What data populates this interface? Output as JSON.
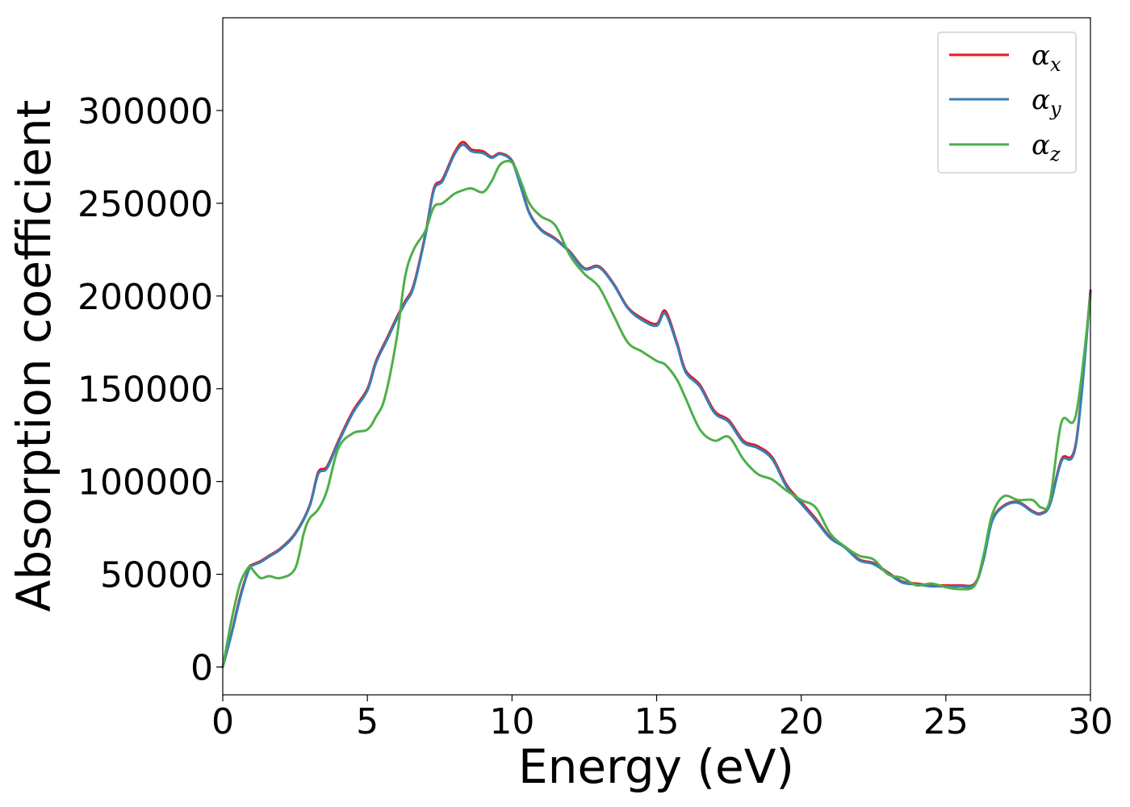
{
  "chart_data": {
    "type": "line",
    "title": "",
    "xlabel": "Energy (eV)",
    "ylabel": "Absorption coefficient",
    "xlim": [
      0,
      30
    ],
    "ylim": [
      -15000,
      350000
    ],
    "xticks": [
      0,
      5,
      10,
      15,
      20,
      25,
      30
    ],
    "yticks": [
      0,
      50000,
      100000,
      150000,
      200000,
      250000,
      300000
    ],
    "xtick_labels": [
      "0",
      "5",
      "10",
      "15",
      "20",
      "25",
      "30"
    ],
    "ytick_labels": [
      "0",
      "50000",
      "100000",
      "150000",
      "200000",
      "250000",
      "300000"
    ],
    "grid": false,
    "legend_position": "top-right",
    "series": [
      {
        "name": "αx",
        "symbol": "α",
        "subscript": "x",
        "color": "#e41a1c",
        "x": [
          0,
          0.3,
          0.6,
          0.9,
          1.0,
          1.3,
          1.6,
          2.0,
          2.5,
          3.0,
          3.3,
          3.6,
          4.0,
          4.5,
          5.0,
          5.3,
          5.7,
          6.0,
          6.3,
          6.6,
          7.0,
          7.3,
          7.6,
          8.0,
          8.3,
          8.6,
          9.0,
          9.3,
          9.6,
          10.0,
          10.3,
          10.6,
          11.0,
          11.5,
          12.0,
          12.5,
          13.0,
          13.5,
          14.0,
          14.5,
          15.0,
          15.3,
          15.7,
          16.0,
          16.5,
          17.0,
          17.5,
          18.0,
          18.5,
          19.0,
          19.5,
          20.0,
          20.5,
          21.0,
          21.5,
          22.0,
          22.5,
          23.0,
          23.5,
          24.0,
          24.5,
          25.0,
          25.5,
          26.0,
          26.3,
          26.6,
          27.0,
          27.5,
          28.0,
          28.3,
          28.6,
          29.0,
          29.5,
          30.0
        ],
        "y": [
          0,
          18000,
          38000,
          53000,
          55000,
          57000,
          60000,
          64000,
          72000,
          87000,
          105000,
          108000,
          122000,
          138000,
          150000,
          165000,
          178000,
          188000,
          197000,
          206000,
          233000,
          258000,
          263000,
          277000,
          283000,
          279000,
          278000,
          275000,
          277000,
          273000,
          260000,
          245000,
          236000,
          231000,
          224000,
          215000,
          216000,
          207000,
          194000,
          188000,
          185000,
          192000,
          175000,
          160000,
          152000,
          138000,
          133000,
          122000,
          119000,
          113000,
          98000,
          89000,
          80000,
          70000,
          65000,
          58000,
          56000,
          51000,
          46000,
          45000,
          44000,
          44000,
          44000,
          45000,
          58000,
          79000,
          87000,
          89000,
          84000,
          83000,
          88000,
          112000,
          121000,
          203000
        ]
      },
      {
        "name": "αy",
        "symbol": "α",
        "subscript": "y",
        "color": "#377eb8",
        "x": [
          0,
          0.3,
          0.6,
          0.9,
          1.0,
          1.3,
          1.6,
          2.0,
          2.5,
          3.0,
          3.3,
          3.6,
          4.0,
          4.5,
          5.0,
          5.3,
          5.7,
          6.0,
          6.3,
          6.6,
          7.0,
          7.3,
          7.6,
          8.0,
          8.3,
          8.6,
          9.0,
          9.3,
          9.6,
          10.0,
          10.3,
          10.6,
          11.0,
          11.5,
          12.0,
          12.5,
          13.0,
          13.5,
          14.0,
          14.5,
          15.0,
          15.3,
          15.7,
          16.0,
          16.5,
          17.0,
          17.5,
          18.0,
          18.5,
          19.0,
          19.5,
          20.0,
          20.5,
          21.0,
          21.5,
          22.0,
          22.5,
          23.0,
          23.5,
          24.0,
          24.5,
          25.0,
          25.5,
          26.0,
          26.3,
          26.6,
          27.0,
          27.5,
          28.0,
          28.3,
          28.6,
          29.0,
          29.5,
          30.0
        ],
        "y": [
          0,
          17500,
          37000,
          52500,
          54500,
          56500,
          59500,
          63500,
          71500,
          86500,
          104000,
          107000,
          121000,
          137000,
          149000,
          164000,
          177000,
          187000,
          196000,
          205000,
          232000,
          257000,
          262000,
          276000,
          281500,
          278000,
          277000,
          274500,
          276500,
          272500,
          259000,
          244500,
          235500,
          230500,
          223500,
          214500,
          215500,
          206500,
          193500,
          187000,
          184000,
          190500,
          174000,
          159000,
          151000,
          137000,
          132000,
          121000,
          118000,
          112000,
          97000,
          88000,
          79000,
          69500,
          64500,
          57500,
          55500,
          50500,
          45500,
          44500,
          43500,
          43500,
          43500,
          44500,
          57500,
          78500,
          86500,
          88500,
          83500,
          82500,
          87500,
          111000,
          120000,
          202000
        ]
      },
      {
        "name": "αz",
        "symbol": "α",
        "subscript": "z",
        "color": "#4daf4a",
        "x": [
          0,
          0.3,
          0.6,
          0.9,
          1.0,
          1.3,
          1.6,
          2.0,
          2.5,
          2.8,
          3.0,
          3.3,
          3.6,
          4.0,
          4.5,
          5.0,
          5.3,
          5.6,
          6.0,
          6.3,
          6.6,
          7.0,
          7.3,
          7.6,
          8.0,
          8.3,
          8.6,
          9.0,
          9.3,
          9.6,
          10.0,
          10.3,
          10.6,
          11.0,
          11.5,
          12.0,
          12.5,
          13.0,
          13.5,
          14.0,
          14.5,
          15.0,
          15.3,
          15.7,
          16.0,
          16.5,
          17.0,
          17.5,
          18.0,
          18.5,
          19.0,
          19.5,
          20.0,
          20.5,
          21.0,
          21.5,
          22.0,
          22.5,
          23.0,
          23.5,
          24.0,
          24.5,
          25.0,
          25.5,
          26.0,
          26.3,
          26.6,
          27.0,
          27.5,
          28.0,
          28.3,
          28.6,
          29.0,
          29.5,
          30.0
        ],
        "y": [
          0,
          25000,
          45000,
          54000,
          53000,
          48000,
          49000,
          48000,
          53000,
          72000,
          80000,
          85000,
          95000,
          118000,
          126000,
          128000,
          135000,
          145000,
          176000,
          210000,
          225000,
          235000,
          248000,
          250000,
          255000,
          257000,
          258000,
          256000,
          262000,
          271000,
          272000,
          262000,
          250000,
          243000,
          238000,
          222000,
          212000,
          205000,
          190000,
          175000,
          170000,
          165000,
          163000,
          155000,
          145000,
          128000,
          122000,
          124000,
          112000,
          104000,
          101000,
          95000,
          90000,
          86000,
          72000,
          65000,
          60000,
          58000,
          50000,
          48000,
          44000,
          45000,
          43000,
          42000,
          44000,
          60000,
          82000,
          92000,
          90000,
          90000,
          86000,
          90000,
          132000,
          136000,
          200000
        ]
      }
    ]
  }
}
